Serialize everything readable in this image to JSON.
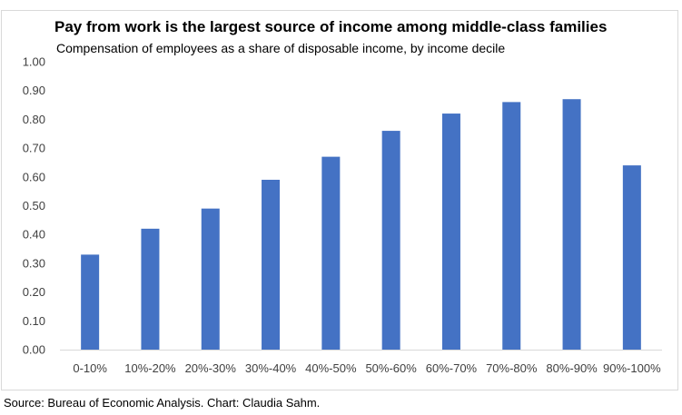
{
  "chart_data": {
    "type": "bar",
    "title": "Pay from work is the largest source of income among middle-class families",
    "subtitle": "Compensation of employees as a share of disposable income, by income decile",
    "xlabel": "",
    "ylabel": "",
    "categories": [
      "0-10%",
      "10%-20%",
      "20%-30%",
      "30%-40%",
      "40%-50%",
      "50%-60%",
      "60%-70%",
      "70%-80%",
      "80%-90%",
      "90%-100%"
    ],
    "values": [
      0.33,
      0.42,
      0.49,
      0.59,
      0.67,
      0.76,
      0.82,
      0.86,
      0.87,
      0.64
    ],
    "ylim": [
      0,
      1.0
    ],
    "yticks": [
      "0.00",
      "0.10",
      "0.20",
      "0.30",
      "0.40",
      "0.50",
      "0.60",
      "0.70",
      "0.80",
      "0.90",
      "1.00"
    ],
    "bar_color": "#4472c4",
    "grid": false,
    "legend": "none"
  },
  "source": "Source: Bureau of Economic Analysis. Chart: Claudia Sahm."
}
